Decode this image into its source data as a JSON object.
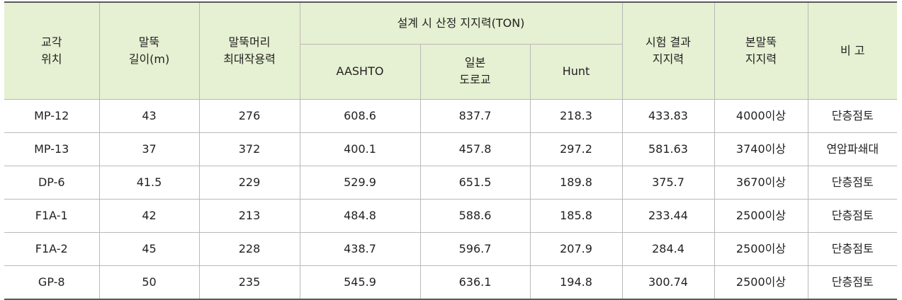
{
  "header": {
    "col1": [
      "교각",
      "위치"
    ],
    "col2": [
      "말뚝",
      "길이(m)"
    ],
    "col3": [
      "말뚝머리",
      "최대작용력"
    ],
    "group": "설계 시 산정 지지력(TON)",
    "sub1": "AASHTO",
    "sub2": [
      "일본",
      "도로교"
    ],
    "sub3": "Hunt",
    "col7": [
      "시험 결과",
      "지지력"
    ],
    "col8": [
      "본말뚝",
      "지지력"
    ],
    "col9": "비 고"
  },
  "rows": [
    [
      "MP-12",
      "43",
      "276",
      "608.6",
      "837.7",
      "218.3",
      "433.83",
      "4000이상",
      "단층점토"
    ],
    [
      "MP-13",
      "37",
      "372",
      "400.1",
      "457.8",
      "297.2",
      "581.63",
      "3740이상",
      "연암파쇄대"
    ],
    [
      "DP-6",
      "41.5",
      "229",
      "529.9",
      "651.5",
      "189.8",
      "375.7",
      "3670이상",
      "단층점토"
    ],
    [
      "F1A-1",
      "42",
      "213",
      "484.8",
      "588.6",
      "185.8",
      "233.44",
      "2500이상",
      "단층점토"
    ],
    [
      "F1A-2",
      "45",
      "228",
      "438.7",
      "596.7",
      "207.9",
      "284.4",
      "2500이상",
      "단층점토"
    ],
    [
      "GP-8",
      "50",
      "235",
      "545.9",
      "636.1",
      "194.8",
      "300.74",
      "2500이상",
      "단층점토"
    ]
  ]
}
